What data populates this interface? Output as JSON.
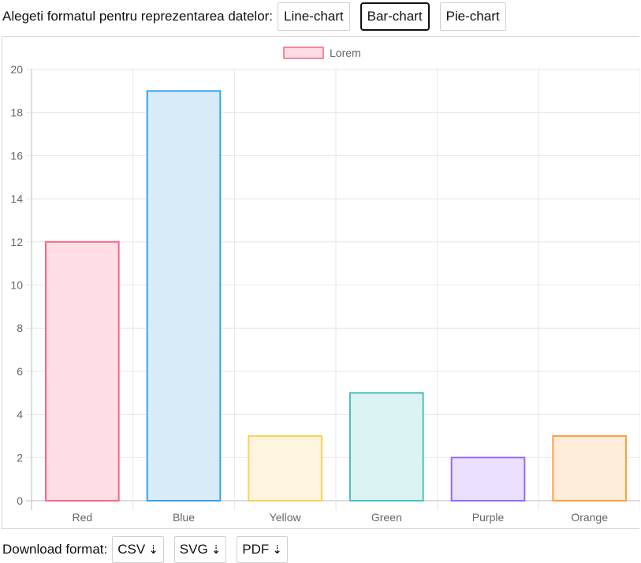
{
  "format_selector": {
    "label": "Alegeti formatul pentru reprezentarea datelor:",
    "buttons": [
      {
        "label": "Line-chart",
        "active": false
      },
      {
        "label": "Bar-chart",
        "active": true
      },
      {
        "label": "Pie-chart",
        "active": false
      }
    ]
  },
  "download": {
    "label": "Download format:",
    "buttons": [
      {
        "label": "CSV",
        "icon": "download-arrow-icon",
        "glyph": "⇣"
      },
      {
        "label": "SVG",
        "icon": "download-arrow-icon",
        "glyph": "⇣"
      },
      {
        "label": "PDF",
        "icon": "download-arrow-icon",
        "glyph": "⇣"
      }
    ]
  },
  "chart_data": {
    "type": "bar",
    "categories": [
      "Red",
      "Blue",
      "Yellow",
      "Green",
      "Purple",
      "Orange"
    ],
    "series": [
      {
        "name": "Lorem",
        "values": [
          12,
          19,
          3,
          5,
          2,
          3
        ]
      }
    ],
    "ylim": [
      0,
      20
    ],
    "yticks": [
      0,
      2,
      4,
      6,
      8,
      10,
      12,
      14,
      16,
      18,
      20
    ],
    "grid": true,
    "legend_position": "top-center",
    "legend_colors": {
      "fill": "#ffdde4",
      "stroke": "#ff6384"
    },
    "bar_colors": [
      {
        "fill": "#ffdfe5",
        "stroke": "#ff6384"
      },
      {
        "fill": "#d7ebf9",
        "stroke": "#36a2eb"
      },
      {
        "fill": "#fff4dd",
        "stroke": "#ffce56"
      },
      {
        "fill": "#dbf2f2",
        "stroke": "#4bc0c0"
      },
      {
        "fill": "#ebe0ff",
        "stroke": "#9966ff"
      },
      {
        "fill": "#ffecd9",
        "stroke": "#ff9f40"
      }
    ]
  }
}
